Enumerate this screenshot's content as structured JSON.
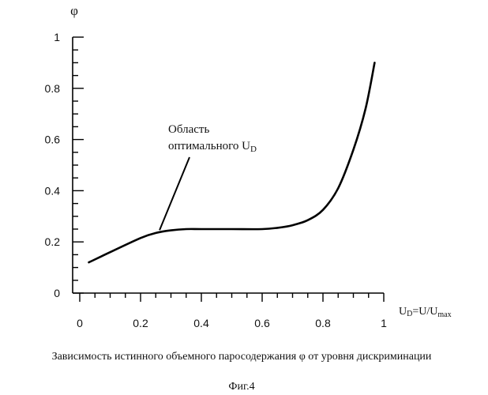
{
  "chart_data": {
    "type": "line",
    "ylabel": "φ",
    "xlabel": {
      "main": "U",
      "main_sub": "D",
      "eq": "=U/U",
      "eq_sub": "max"
    },
    "xlim": [
      0,
      1
    ],
    "ylim": [
      0,
      1
    ],
    "xticks": [
      "0",
      "0.2",
      "0.4",
      "0.6",
      "0.8",
      "1"
    ],
    "yticks": [
      "0",
      "0.2",
      "0.4",
      "0.6",
      "0.8",
      "1"
    ],
    "series": [
      {
        "x": [
          0.03,
          0.1,
          0.2,
          0.25,
          0.3,
          0.35,
          0.4,
          0.5,
          0.6,
          0.65,
          0.7,
          0.75,
          0.8,
          0.85,
          0.9,
          0.94,
          0.97
        ],
        "y": [
          0.12,
          0.16,
          0.215,
          0.235,
          0.245,
          0.25,
          0.25,
          0.25,
          0.25,
          0.255,
          0.265,
          0.285,
          0.325,
          0.41,
          0.56,
          0.72,
          0.9
        ]
      }
    ],
    "annotation": {
      "line1": "Область",
      "line2": "оптимального U",
      "line2_sub": "D",
      "target": {
        "x": 0.26,
        "y": 0.24
      }
    }
  },
  "caption": "Зависимость истинного объемного паросодержания φ от уровня дискриминации",
  "figure_label": "Фиг.4"
}
